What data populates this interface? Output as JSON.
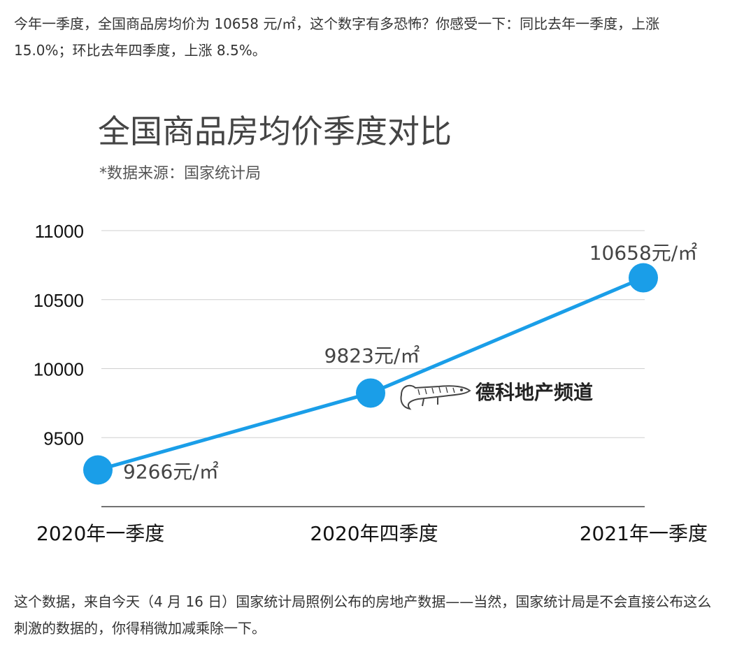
{
  "article": {
    "intro": "今年一季度，全国商品房均价为 10658 元/㎡，这个数字有多恐怖？你感受一下：同比去年一季度，上涨 15.0%；环比去年四季度，上涨 8.5%。",
    "outro": "这个数据，来自今天（4 月 16 日）国家统计局照例公布的房地产数据——当然，国家统计局是不会直接公布这么刺激的数据的，你得稍微加减乘除一下。"
  },
  "watermark": {
    "text": "德科地产频道"
  },
  "colors": {
    "line": "#1a9ee8",
    "grid": "#cfcfcf",
    "axis": "#444444",
    "title": "#444444",
    "text": "#111111"
  },
  "chart_data": {
    "type": "line",
    "title": "全国商品房均价季度对比",
    "subtitle": "*数据来源：国家统计局",
    "categories": [
      "2020年一季度",
      "2020年四季度",
      "2021年一季度"
    ],
    "series": [
      {
        "values": [
          9266,
          9823,
          10658
        ],
        "labels": [
          "9266元/㎡",
          "9823元/㎡",
          "10658元/㎡"
        ]
      }
    ],
    "yticks": [
      9500,
      10000,
      10500,
      11000
    ],
    "ylim": [
      9000,
      11000
    ],
    "grid": true,
    "legend": "none"
  }
}
